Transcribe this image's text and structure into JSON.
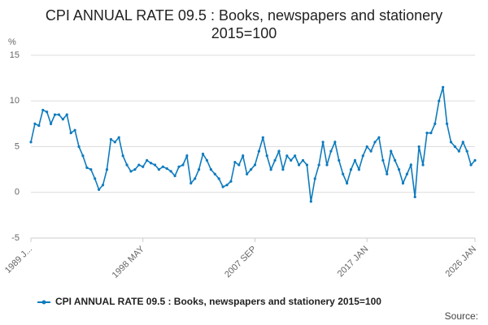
{
  "chart_data": {
    "type": "line",
    "title": "CPI ANNUAL RATE 09.5 : Books, newspapers and stationery 2015=100",
    "y_label": "%",
    "source": "Source:",
    "categories": [
      "1989 J...",
      null,
      null,
      null,
      null,
      null,
      null,
      null,
      null,
      null,
      null,
      null,
      null,
      null,
      null,
      null,
      null,
      null,
      null,
      null,
      null,
      null,
      null,
      null,
      null,
      null,
      null,
      null,
      "1998 MAY",
      null,
      null,
      null,
      null,
      null,
      null,
      null,
      null,
      null,
      null,
      null,
      null,
      null,
      null,
      null,
      null,
      null,
      null,
      null,
      null,
      null,
      null,
      null,
      null,
      null,
      null,
      null,
      "2007 SEP",
      null,
      null,
      null,
      null,
      null,
      null,
      null,
      null,
      null,
      null,
      null,
      null,
      null,
      null,
      null,
      null,
      null,
      null,
      null,
      null,
      null,
      null,
      null,
      null,
      null,
      null,
      null,
      "2017 JAN",
      null,
      null,
      null,
      null,
      null,
      null,
      null,
      null,
      null,
      null,
      null,
      null,
      null,
      null,
      null,
      null,
      null,
      null,
      null,
      null,
      null,
      null,
      null,
      null,
      null,
      null,
      "2026 JAN"
    ],
    "series": [
      {
        "name": "CPI ANNUAL RATE 09.5 : Books, newspapers and stationery 2015=100",
        "color": "#0f7bbd",
        "values": [
          5.5,
          7.5,
          7.3,
          9.0,
          8.8,
          7.5,
          8.5,
          8.5,
          8.0,
          8.5,
          6.5,
          6.8,
          5.0,
          4.0,
          2.7,
          2.5,
          1.5,
          0.3,
          0.8,
          2.5,
          5.8,
          5.5,
          6.0,
          4.0,
          3.0,
          2.3,
          2.5,
          3.0,
          2.8,
          3.5,
          3.2,
          3.0,
          2.5,
          2.8,
          2.6,
          2.3,
          1.8,
          2.8,
          3.0,
          4.0,
          1.0,
          1.5,
          2.5,
          4.2,
          3.5,
          2.5,
          2.0,
          1.5,
          0.6,
          0.8,
          1.2,
          3.3,
          3.0,
          4.0,
          2.0,
          2.5,
          3.0,
          4.5,
          6.0,
          4.0,
          2.5,
          3.5,
          4.5,
          2.5,
          4.0,
          3.5,
          4.0,
          3.0,
          3.5,
          3.0,
          -1.0,
          1.5,
          3.0,
          5.5,
          3.0,
          4.5,
          5.5,
          3.5,
          2.0,
          1.0,
          2.5,
          3.5,
          2.5,
          4.0,
          5.0,
          4.5,
          5.5,
          6.0,
          3.5,
          2.0,
          4.5,
          3.5,
          2.5,
          1.0,
          2.0,
          3.0,
          -0.5,
          5.0,
          3.0,
          6.5,
          6.5,
          7.5,
          10.0,
          11.5,
          7.5,
          5.5,
          5.0,
          4.5,
          5.5,
          4.5,
          3.0,
          3.5
        ]
      }
    ],
    "ylim": [
      -5,
      15
    ],
    "yticks": [
      -5,
      0,
      5,
      10,
      15
    ],
    "grid": true,
    "legend": "bottom"
  }
}
